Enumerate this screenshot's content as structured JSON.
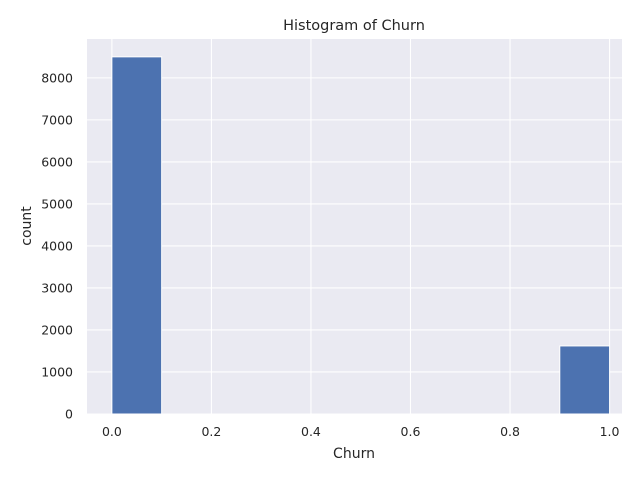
{
  "chart_data": {
    "type": "bar",
    "title": "Histogram of Churn",
    "xlabel": "Churn",
    "ylabel": "count",
    "xlim": [
      -0.05,
      1.025
    ],
    "ylim": [
      0,
      8925
    ],
    "bins": [
      {
        "x0": 0.0,
        "x1": 0.1,
        "count": 8500
      },
      {
        "x0": 0.1,
        "x1": 0.2,
        "count": 0
      },
      {
        "x0": 0.2,
        "x1": 0.3,
        "count": 0
      },
      {
        "x0": 0.3,
        "x1": 0.4,
        "count": 0
      },
      {
        "x0": 0.4,
        "x1": 0.5,
        "count": 0
      },
      {
        "x0": 0.5,
        "x1": 0.6,
        "count": 0
      },
      {
        "x0": 0.6,
        "x1": 0.7,
        "count": 0
      },
      {
        "x0": 0.7,
        "x1": 0.8,
        "count": 0
      },
      {
        "x0": 0.8,
        "x1": 0.9,
        "count": 0
      },
      {
        "x0": 0.9,
        "x1": 1.0,
        "count": 1620
      }
    ],
    "xticks": [
      {
        "value": 0.0,
        "label": "0.0"
      },
      {
        "value": 0.2,
        "label": "0.2"
      },
      {
        "value": 0.4,
        "label": "0.4"
      },
      {
        "value": 0.6,
        "label": "0.6"
      },
      {
        "value": 0.8,
        "label": "0.8"
      },
      {
        "value": 1.0,
        "label": "1.0"
      }
    ],
    "yticks": [
      {
        "value": 0,
        "label": "0"
      },
      {
        "value": 1000,
        "label": "1000"
      },
      {
        "value": 2000,
        "label": "2000"
      },
      {
        "value": 3000,
        "label": "3000"
      },
      {
        "value": 4000,
        "label": "4000"
      },
      {
        "value": 5000,
        "label": "5000"
      },
      {
        "value": 6000,
        "label": "6000"
      },
      {
        "value": 7000,
        "label": "7000"
      },
      {
        "value": 8000,
        "label": "8000"
      }
    ],
    "grid": true,
    "colors": {
      "bar": "#4c72b0",
      "plot_background": "#eaeaf2",
      "grid": "#ffffff"
    }
  }
}
